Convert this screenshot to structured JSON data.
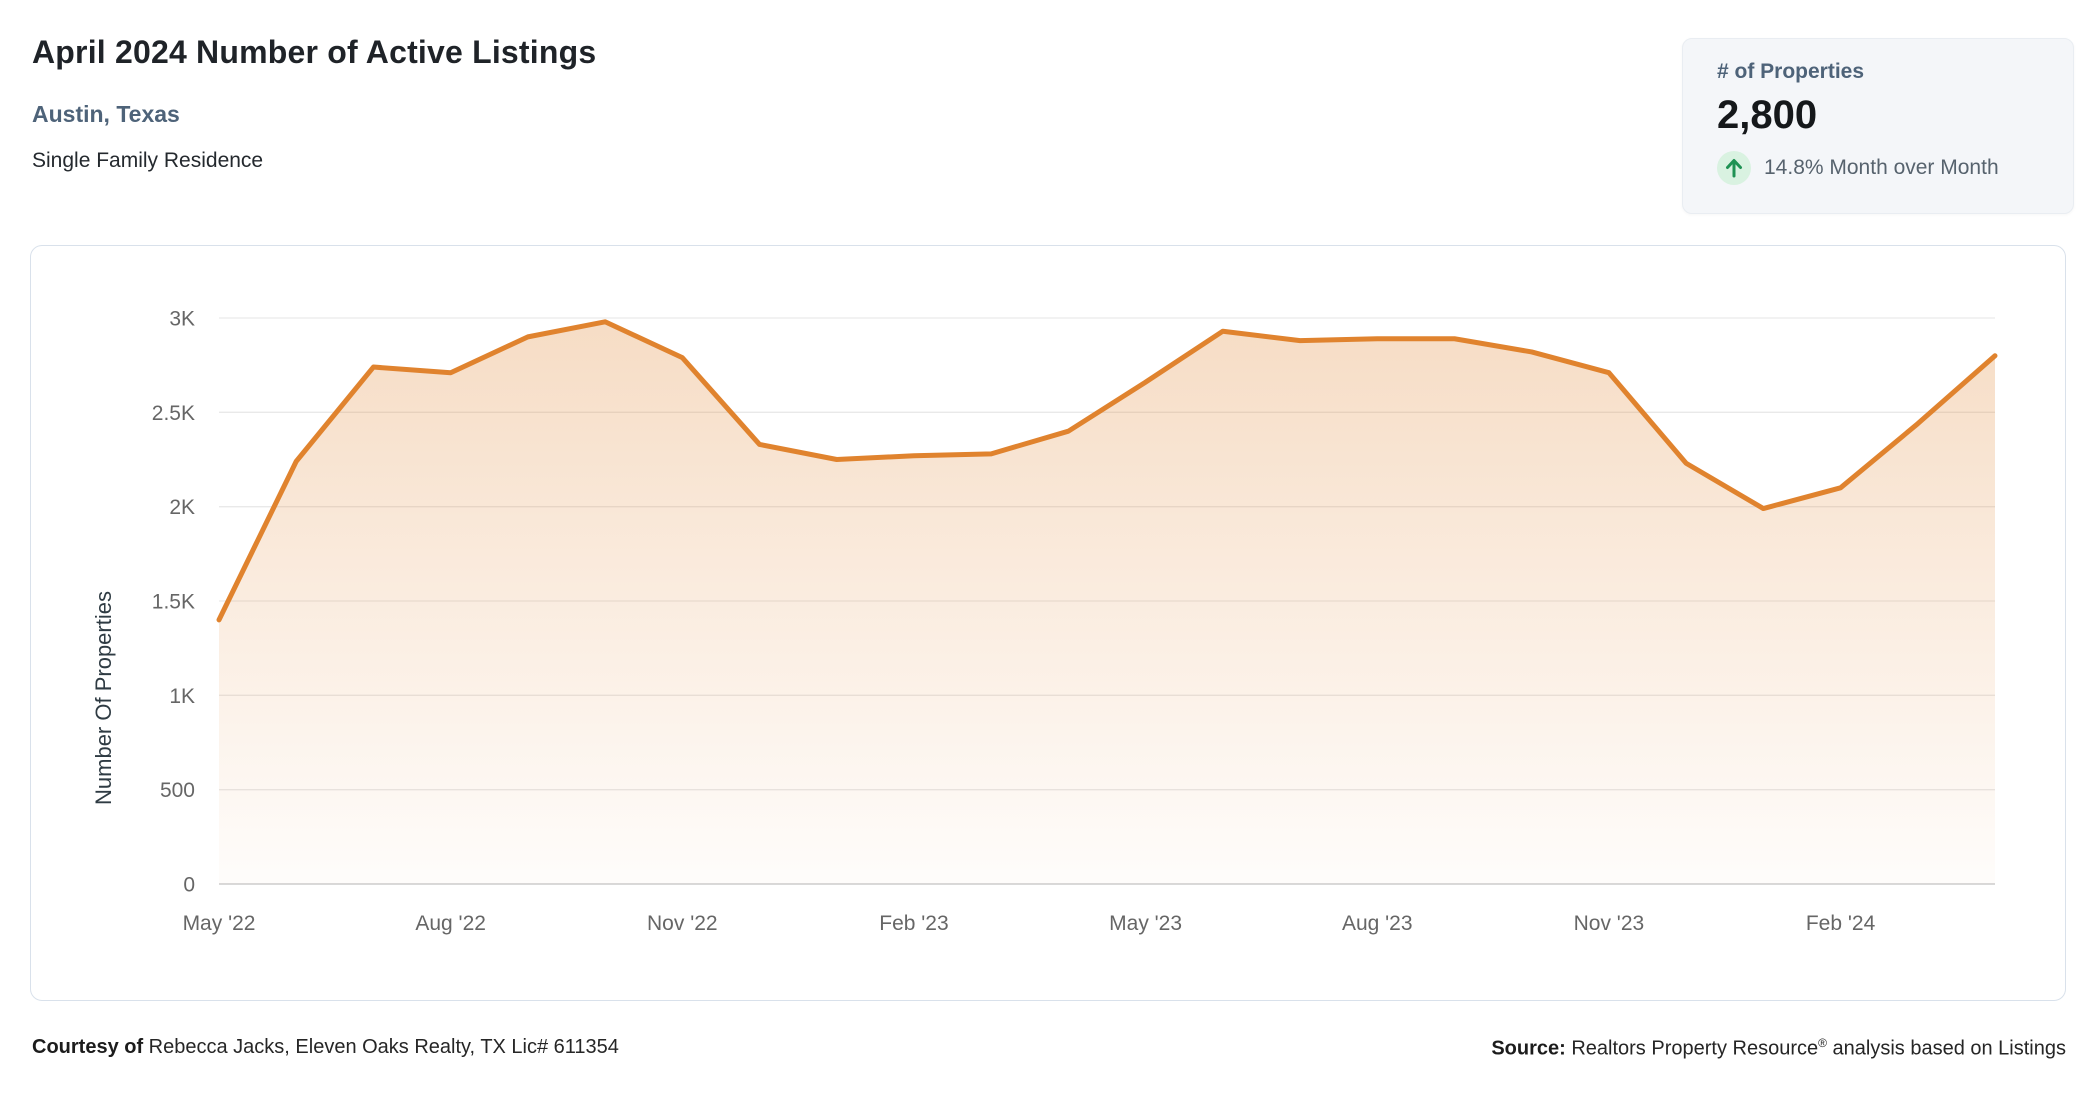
{
  "header": {
    "title": "April 2024 Number of Active Listings",
    "location": "Austin, Texas",
    "property_type": "Single Family Residence"
  },
  "stat_card": {
    "label": "# of Properties",
    "value": "2,800",
    "change_text": "14.8% Month over Month",
    "trend_icon": "arrow-up-icon",
    "trend_arrow_color": "#1f9254",
    "trend_circle_color": "#d9f2e1"
  },
  "chart_data": {
    "type": "area",
    "title": "",
    "xlabel": "",
    "ylabel": "Number Of Properties",
    "ylim": [
      0,
      3000
    ],
    "grid": true,
    "legend": "none",
    "x": [
      "May '22",
      "Jun '22",
      "Jul '22",
      "Aug '22",
      "Sep '22",
      "Oct '22",
      "Nov '22",
      "Dec '22",
      "Jan '23",
      "Feb '23",
      "Mar '23",
      "Apr '23",
      "May '23",
      "Jun '23",
      "Jul '23",
      "Aug '23",
      "Sep '23",
      "Oct '23",
      "Nov '23",
      "Dec '23",
      "Jan '24",
      "Feb '24",
      "Mar '24",
      "Apr '24"
    ],
    "x_tick_every": 3,
    "series": [
      {
        "name": "Number of Active Listings",
        "values": [
          1400,
          2240,
          2740,
          2710,
          2900,
          2980,
          2790,
          2330,
          2250,
          2270,
          2280,
          2400,
          2660,
          2930,
          2880,
          2890,
          2890,
          2820,
          2710,
          2230,
          1990,
          2100,
          2440,
          2800
        ]
      }
    ],
    "y_ticks": [
      {
        "value": 0,
        "label": "0"
      },
      {
        "value": 500,
        "label": "500"
      },
      {
        "value": 1000,
        "label": "1K"
      },
      {
        "value": 1500,
        "label": "1.5K"
      },
      {
        "value": 2000,
        "label": "2K"
      },
      {
        "value": 2500,
        "label": "2.5K"
      },
      {
        "value": 3000,
        "label": "3K"
      }
    ],
    "line_color": "#e0832e",
    "fill_color": "#e0832e",
    "fill_opacity_top": 0.28,
    "fill_opacity_bottom": 0.02,
    "grid_color": "#e9e9e9",
    "axis_line_color": "#d9d9d9",
    "tick_color": "#666666"
  },
  "footer": {
    "courtesy_label": "Courtesy of",
    "courtesy_text": " Rebecca Jacks, Eleven Oaks Realty, TX Lic# 611354",
    "source_label": "Source:",
    "source_text": " Realtors Property Resource",
    "reg_mark": "®",
    "source_tail": " analysis based on Listings"
  }
}
